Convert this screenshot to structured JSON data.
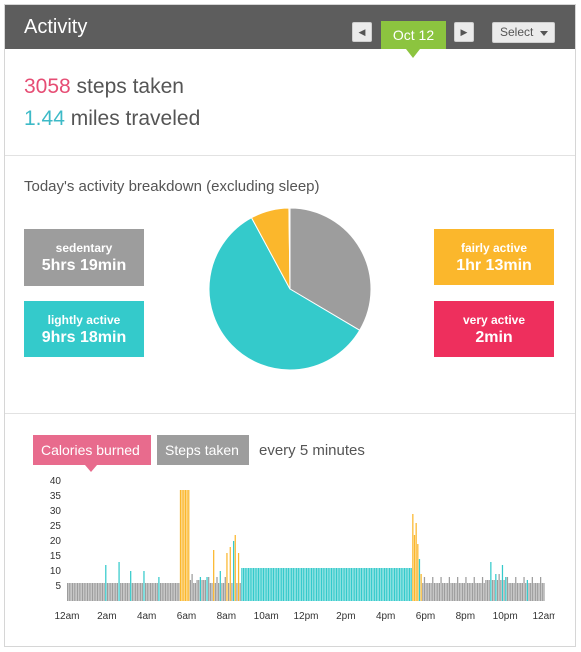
{
  "header": {
    "title": "Activity",
    "date": "Oct 12",
    "prev_icon": "◀",
    "next_icon": "▶",
    "select_label": "Select"
  },
  "summary": {
    "steps_value": "3058",
    "steps_label": " steps taken",
    "miles_value": "1.44",
    "miles_label": " miles traveled"
  },
  "breakdown": {
    "title": "Today's activity breakdown (excluding sleep)",
    "tiles": [
      {
        "label": "sedentary",
        "value": "5hrs 19min",
        "color": "#9d9d9d"
      },
      {
        "label": "lightly active",
        "value": "9hrs 18min",
        "color": "#34cacb"
      },
      {
        "label": "fairly active",
        "value": "1hr 13min",
        "color": "#fbb72c"
      },
      {
        "label": "very active",
        "value": "2min",
        "color": "#ee2f5d"
      }
    ]
  },
  "colors": {
    "sedentary": "#9d9d9d",
    "lightly": "#34cacb",
    "fairly": "#fbb72c",
    "very": "#ee2f5d",
    "calories_tab": "#e86b8d",
    "steps_tab": "#9d9d9d",
    "date_tab": "#8cc43f",
    "header_bg": "#5d5d5d"
  },
  "intraday": {
    "tab_calories": "Calories burned",
    "tab_steps": "Steps taken",
    "interval": "every 5 minutes"
  },
  "chart_data": [
    {
      "type": "pie",
      "labels": [
        "sedentary",
        "lightly active",
        "fairly active",
        "very active"
      ],
      "values": [
        319,
        558,
        73,
        2
      ],
      "order_clockwise_from_top": [
        "sedentary",
        "lightly active",
        "fairly active",
        "very active"
      ]
    },
    {
      "type": "bar",
      "title": "",
      "xlabel": "",
      "ylabel": "",
      "y_ticks": [
        5,
        10,
        15,
        20,
        25,
        30,
        35,
        40
      ],
      "ylim": [
        0,
        40
      ],
      "x_ticks": [
        "12am",
        "2am",
        "4am",
        "6am",
        "8am",
        "10am",
        "12pm",
        "2pm",
        "4pm",
        "6pm",
        "8pm",
        "10pm",
        "12am"
      ],
      "bin_minutes": 5,
      "samples_hourly": [
        6,
        6,
        7,
        6,
        6,
        6,
        7,
        6,
        6,
        6,
        8,
        6,
        6,
        6,
        7,
        6,
        6,
        6,
        6,
        6,
        6,
        7,
        6,
        6
      ],
      "segments": [
        {
          "from": 0,
          "to": 66,
          "base": 6,
          "level": "sedentary"
        },
        {
          "from": 23,
          "to": 24,
          "value": 12,
          "level": "lightly"
        },
        {
          "from": 31,
          "to": 32,
          "value": 13,
          "level": "lightly"
        },
        {
          "from": 38,
          "to": 39,
          "value": 10,
          "level": "lightly"
        },
        {
          "from": 46,
          "to": 47,
          "value": 10,
          "level": "lightly"
        },
        {
          "from": 55,
          "to": 56,
          "value": 8,
          "level": "lightly"
        },
        {
          "from": 68,
          "to": 70,
          "value": 37,
          "level": "fairly"
        },
        {
          "from": 70,
          "to": 71,
          "value": 37,
          "level": "fairly"
        },
        {
          "from": 71,
          "to": 72,
          "value": 37,
          "level": "fairly"
        },
        {
          "from": 72,
          "to": 73,
          "value": 37,
          "level": "fairly"
        },
        {
          "from": 73,
          "to": 74,
          "value": 37,
          "level": "fairly"
        },
        {
          "from": 76,
          "to": 78,
          "value": 6,
          "level": "sedentary"
        },
        {
          "from": 80,
          "to": 81,
          "value": 8,
          "level": "lightly"
        },
        {
          "from": 84,
          "to": 85,
          "value": 8,
          "level": "lightly"
        },
        {
          "from": 88,
          "to": 89,
          "value": 17,
          "level": "fairly"
        },
        {
          "from": 92,
          "to": 93,
          "value": 10,
          "level": "lightly"
        },
        {
          "from": 96,
          "to": 97,
          "value": 16,
          "level": "fairly"
        },
        {
          "from": 98,
          "to": 99,
          "value": 18,
          "level": "fairly"
        },
        {
          "from": 100,
          "to": 101,
          "value": 20,
          "level": "lightly"
        },
        {
          "from": 101,
          "to": 102,
          "value": 22,
          "level": "fairly"
        },
        {
          "from": 103,
          "to": 104,
          "value": 16,
          "level": "fairly"
        },
        {
          "from": 105,
          "to": 208,
          "value": 11,
          "level": "lightly"
        },
        {
          "from": 208,
          "to": 209,
          "value": 29,
          "level": "fairly"
        },
        {
          "from": 209,
          "to": 210,
          "value": 22,
          "level": "fairly"
        },
        {
          "from": 210,
          "to": 211,
          "value": 26,
          "level": "fairly"
        },
        {
          "from": 211,
          "to": 212,
          "value": 19,
          "level": "fairly"
        },
        {
          "from": 212,
          "to": 213,
          "value": 14,
          "level": "lightly"
        },
        {
          "from": 213,
          "to": 214,
          "value": 9,
          "level": "fairly"
        },
        {
          "from": 255,
          "to": 256,
          "value": 13,
          "level": "lightly"
        },
        {
          "from": 258,
          "to": 259,
          "value": 9,
          "level": "lightly"
        },
        {
          "from": 262,
          "to": 263,
          "value": 12,
          "level": "lightly"
        },
        {
          "from": 264,
          "to": 265,
          "value": 8,
          "level": "lightly"
        },
        {
          "from": 277,
          "to": 278,
          "value": 7,
          "level": "lightly"
        }
      ]
    }
  ]
}
